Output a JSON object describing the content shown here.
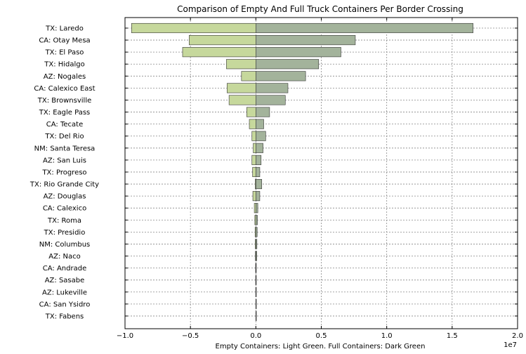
{
  "chart_data": {
    "type": "bar",
    "orientation": "horizontal",
    "title": "Comparison of Empty And Full Truck Containers Per Border Crossing",
    "xlabel": "Empty Containers: Light Green. Full Containers: Dark Green",
    "ylabel": "",
    "x_offset_label": "1e7",
    "xlim": [
      -10000000,
      20000000
    ],
    "xticks": [
      -10000000,
      -5000000,
      0,
      5000000,
      10000000,
      15000000,
      20000000
    ],
    "xtick_labels": [
      "−1.0",
      "−0.5",
      "0.0",
      "0.5",
      "1.0",
      "1.5",
      "2.0"
    ],
    "grid": true,
    "categories": [
      "TX: Laredo",
      "CA: Otay Mesa",
      "TX: El Paso",
      "TX: Hidalgo",
      "AZ: Nogales",
      "CA: Calexico East",
      "TX: Brownsville",
      "TX: Eagle Pass",
      "CA: Tecate",
      "TX: Del Rio",
      "NM: Santa Teresa",
      "AZ: San Luis",
      "TX: Progreso",
      "TX: Rio Grande City",
      "AZ: Douglas",
      "CA: Calexico",
      "TX: Roma",
      "TX: Presidio",
      "NM: Columbus",
      "AZ: Naco",
      "CA: Andrade",
      "AZ: Sasabe",
      "AZ: Lukeville",
      "CA: San Ysidro",
      "TX: Fabens"
    ],
    "series": [
      {
        "values": [
          -9500000,
          -5100000,
          -5600000,
          -2250000,
          -1100000,
          -2200000,
          -2050000,
          -700000,
          -500000,
          -300000,
          -200000,
          -300000,
          -250000,
          -50000,
          -230000,
          -120000,
          -80000,
          -60000,
          -50000,
          -40000,
          -20000,
          -15000,
          -10000,
          -5000,
          -3000
        ],
        "color": "#c6d89c"
      },
      {
        "values": [
          16600000,
          7600000,
          6500000,
          4800000,
          3800000,
          2450000,
          2250000,
          1050000,
          600000,
          750000,
          550000,
          400000,
          300000,
          450000,
          300000,
          150000,
          120000,
          100000,
          80000,
          70000,
          30000,
          20000,
          15000,
          10000,
          5000
        ],
        "color": "#a3b39b"
      }
    ],
    "legend": "none"
  }
}
